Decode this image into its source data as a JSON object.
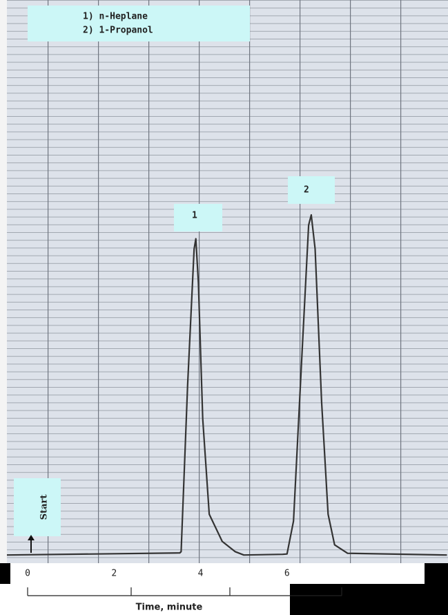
{
  "chart_data": {
    "type": "line",
    "legend": [
      "1)  n-Heplane",
      "2)  1-Propanol"
    ],
    "annotations": [
      "1",
      "2"
    ],
    "start_label": "Start",
    "x_label": "Time, minute",
    "x": [
      -0.48,
      3.52,
      3.55,
      3.7,
      3.85,
      3.89,
      3.95,
      4.05,
      4.2,
      4.5,
      4.8,
      5.0,
      5.9,
      6.0,
      6.15,
      6.35,
      6.5,
      6.56,
      6.65,
      6.8,
      6.95,
      7.1,
      7.4,
      9.7
    ],
    "values": [
      0,
      0.6,
      1,
      50,
      90,
      93,
      80,
      40,
      12,
      4,
      1,
      0,
      0.2,
      0.3,
      10,
      60,
      97,
      100,
      90,
      45,
      12,
      3,
      0.5,
      0
    ],
    "color": "#333333",
    "xlim": [
      -0.48,
      9.7
    ],
    "xticks": [
      0,
      2,
      4,
      6
    ],
    "ylim": [
      -2.4,
      163.2
    ]
  }
}
